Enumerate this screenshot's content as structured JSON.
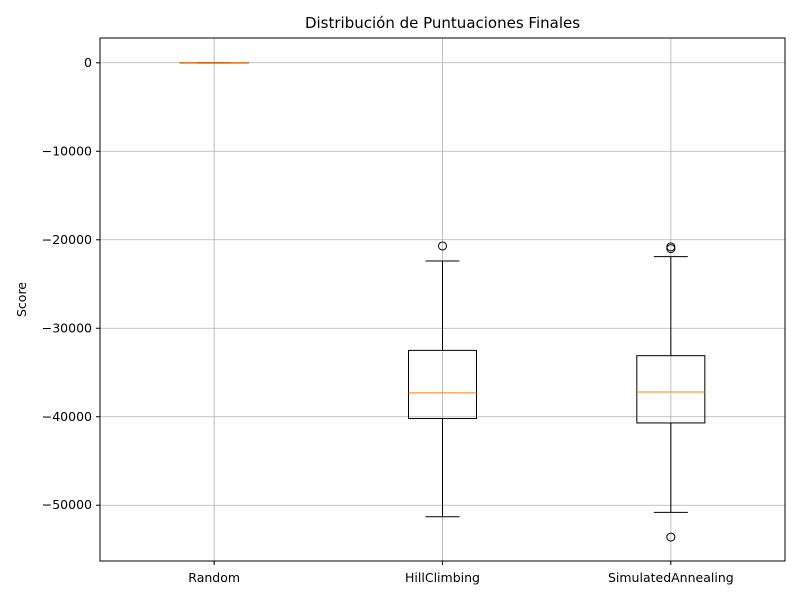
{
  "chart_data": {
    "type": "boxplot",
    "title": "Distribución de Puntuaciones Finales",
    "xlabel": "",
    "ylabel": "Score",
    "ylim": [
      -56300,
      2800
    ],
    "yticks": [
      0,
      -10000,
      -20000,
      -30000,
      -40000,
      -50000
    ],
    "ytick_labels": [
      "0",
      "−10000",
      "−20000",
      "−30000",
      "−40000",
      "−50000"
    ],
    "grid": true,
    "categories": [
      "Random",
      "HillClimbing",
      "SimulatedAnnealing"
    ],
    "boxes": [
      {
        "label": "Random",
        "whisker_low": 0,
        "q1": 0,
        "median": 0,
        "q3": 0,
        "whisker_high": 0,
        "fliers": []
      },
      {
        "label": "HillClimbing",
        "whisker_low": -51300,
        "q1": -40200,
        "median": -37300,
        "q3": -32500,
        "whisker_high": -22400,
        "fliers": [
          -20700
        ]
      },
      {
        "label": "SimulatedAnnealing",
        "whisker_low": -50800,
        "q1": -40700,
        "median": -37200,
        "q3": -33100,
        "whisker_high": -21900,
        "fliers": [
          -20800,
          -21000,
          -53600
        ]
      }
    ],
    "colors": {
      "box": "#000000",
      "median": "#ff7f0e",
      "grid": "#b0b0b0"
    }
  }
}
